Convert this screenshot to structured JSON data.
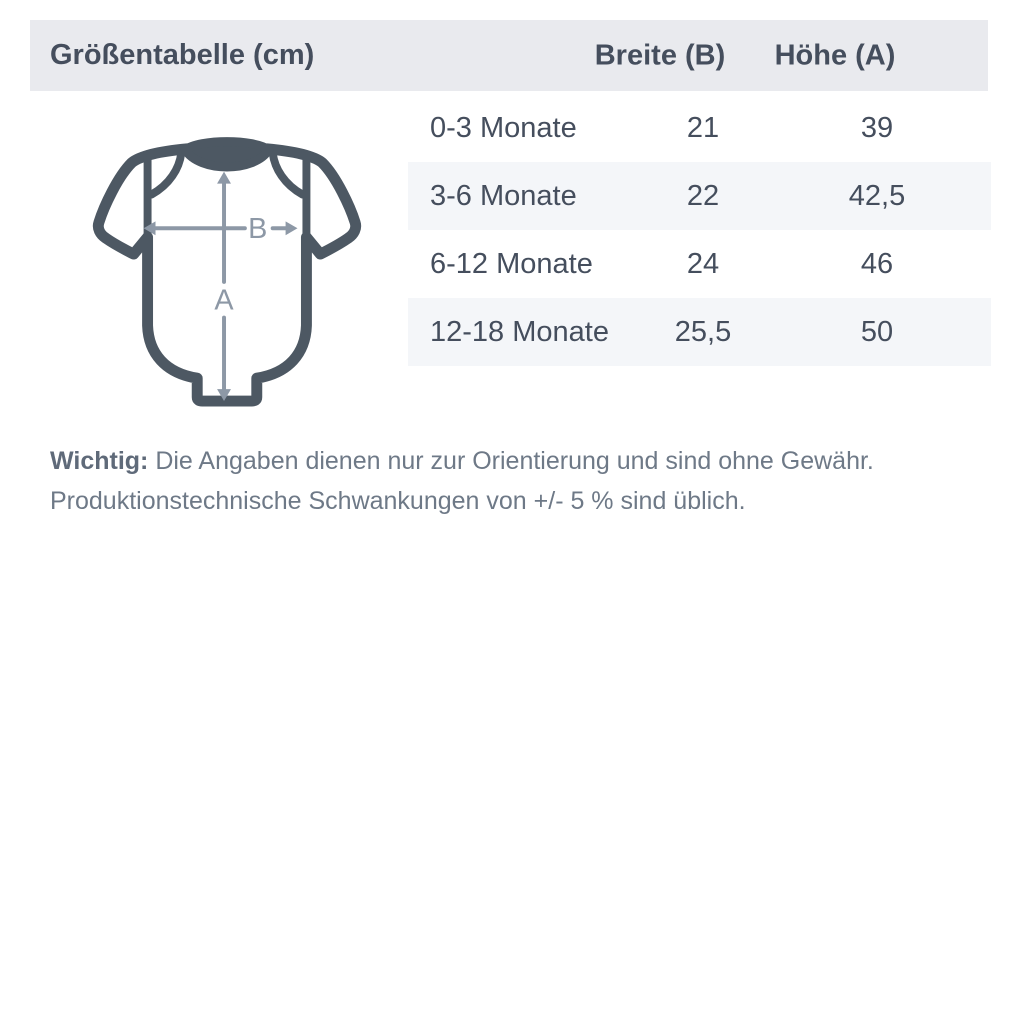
{
  "header": {
    "title": "Größentabelle (cm)",
    "columns": {
      "breite": "Breite (B)",
      "hoehe": "Höhe (A)"
    }
  },
  "diagram": {
    "garment": "baby-bodysuit-outline",
    "width_label": "B",
    "height_label": "A"
  },
  "table": {
    "rows": [
      {
        "size": "0-3 Monate",
        "breite": "21",
        "hoehe": "39"
      },
      {
        "size": "3-6 Monate",
        "breite": "22",
        "hoehe": "42,5"
      },
      {
        "size": "6-12 Monate",
        "breite": "24",
        "hoehe": "46"
      },
      {
        "size": "12-18 Monate",
        "breite": "25,5",
        "hoehe": "50"
      }
    ]
  },
  "note": {
    "lead": "Wichtig:",
    "line1": "Die Angaben dienen nur zur Orientierung und sind ohne Gewähr.",
    "line2": "Produktionstechnische Schwankungen von +/- 5 % sind üblich."
  },
  "colors": {
    "header_bg": "#e9eaee",
    "stripe_bg": "#f4f6f9",
    "text_dark": "#454e5d",
    "note_text": "#6e7987",
    "garment_outline": "#4d5863",
    "dimension_arrow": "#8d98a6"
  }
}
